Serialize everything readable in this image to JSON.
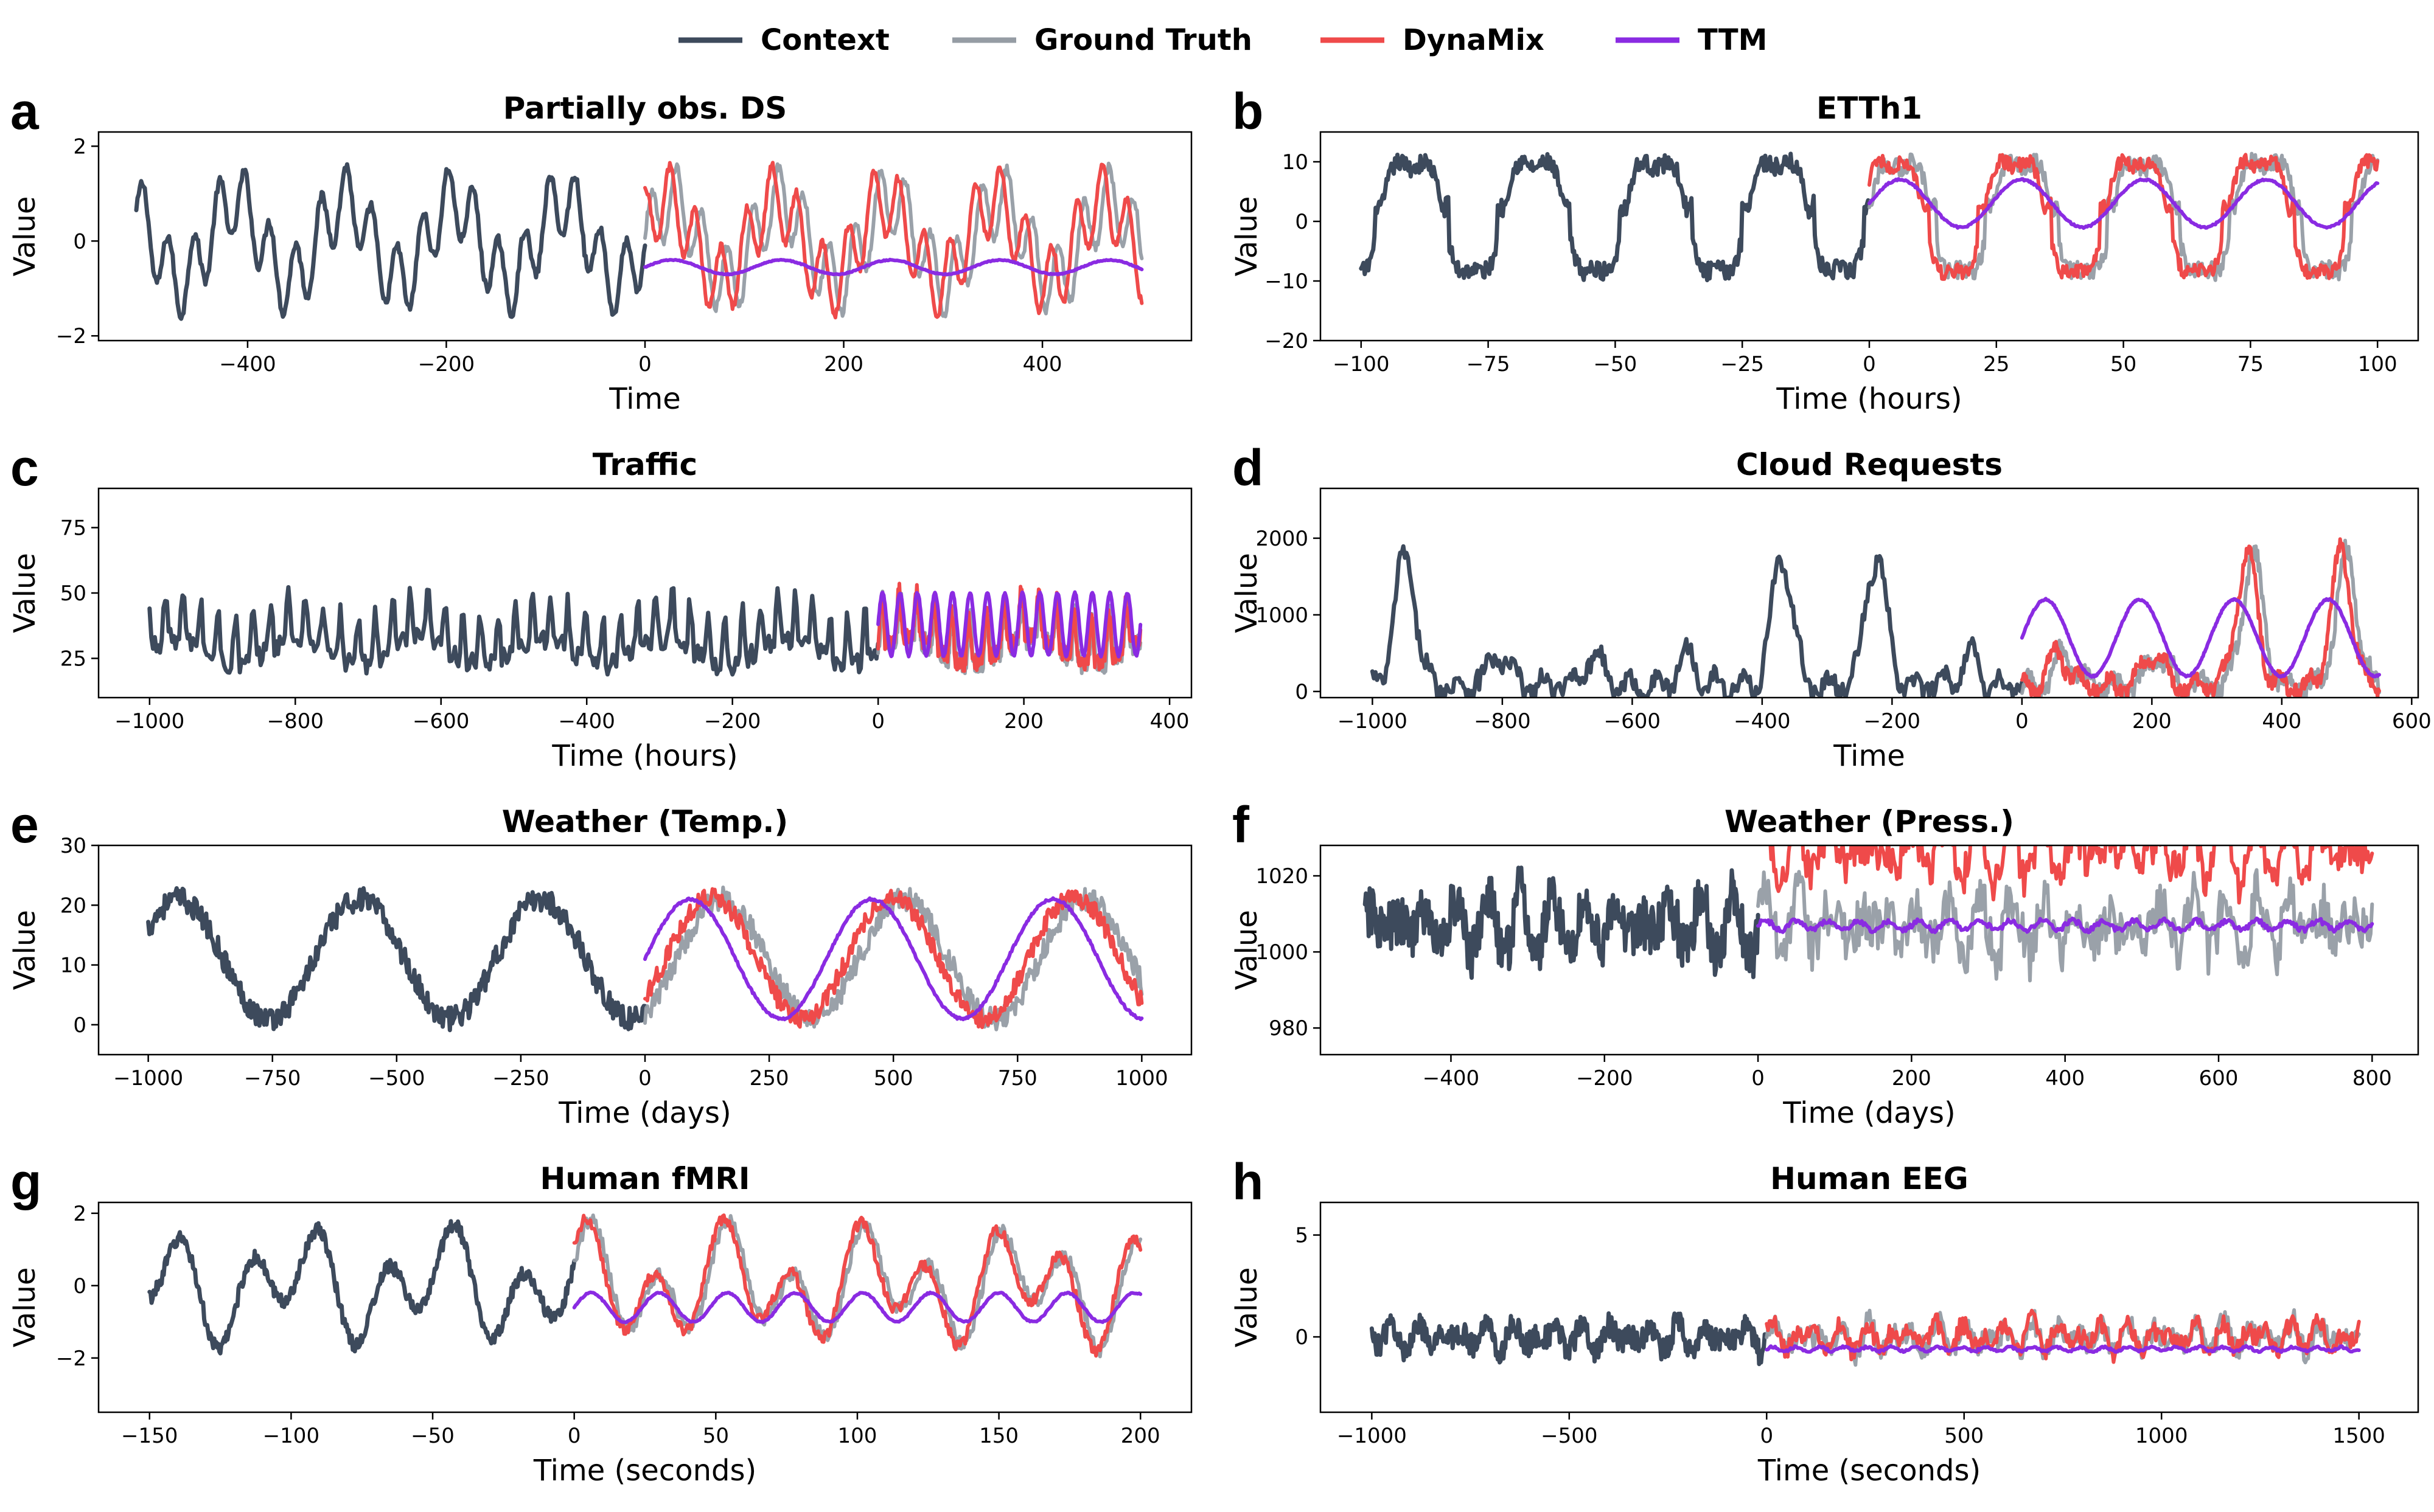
{
  "legend": [
    {
      "name": "Context",
      "color": "#3d4a5c"
    },
    {
      "name": "Ground Truth",
      "color": "#959ca4"
    },
    {
      "name": "DynaMix",
      "color": "#ef4a4a"
    },
    {
      "name": "TTM",
      "color": "#8a2be2"
    }
  ],
  "chart_data": [
    {
      "panel": "a",
      "type": "line",
      "title": "Partially obs. DS",
      "xlabel": "Time",
      "ylabel": "Value",
      "xlim": [
        -550,
        550
      ],
      "ylim": [
        -2.1,
        2.3
      ],
      "xticks": [
        -400,
        -200,
        0,
        200,
        400
      ],
      "yticks": [
        -2,
        0,
        2
      ],
      "context_start": -512,
      "horizon_end": 500,
      "signal": "oscillator",
      "level": 0,
      "amp": 1.4,
      "period": 110,
      "noise": 0.1,
      "ttm_level": -0.55,
      "ttm_amp": 0.15,
      "series": [
        "Context",
        "Ground Truth",
        "DynaMix",
        "TTM"
      ]
    },
    {
      "panel": "b",
      "type": "line",
      "title": "ETTh1",
      "xlabel": "Time (hours)",
      "ylabel": "Value",
      "xlim": [
        -108,
        108
      ],
      "ylim": [
        -20,
        15
      ],
      "xticks": [
        -100,
        -75,
        -50,
        -25,
        0,
        25,
        50,
        75,
        100
      ],
      "yticks": [
        -20,
        -10,
        0,
        10
      ],
      "context_start": -100,
      "horizon_end": 100,
      "signal": "daily",
      "level": 2,
      "amp": 10,
      "period": 24,
      "noise": 1.5,
      "ttm_level": 3,
      "ttm_amp": 4,
      "series": [
        "Context",
        "Ground Truth",
        "DynaMix",
        "TTM"
      ]
    },
    {
      "panel": "c",
      "type": "line",
      "title": "Traffic",
      "xlabel": "Time (hours)",
      "ylabel": "Value",
      "xlim": [
        -1070,
        430
      ],
      "ylim": [
        10,
        90
      ],
      "xticks": [
        -1000,
        -800,
        -600,
        -400,
        -200,
        0,
        200,
        400
      ],
      "yticks": [
        25,
        50,
        75
      ],
      "context_start": -1000,
      "horizon_end": 360,
      "signal": "spiky",
      "level": 32,
      "amp": 18,
      "period": 24,
      "noise": 4,
      "ttm_level": 38,
      "ttm_amp": 12,
      "series": [
        "Context",
        "Ground Truth",
        "DynaMix",
        "TTM"
      ]
    },
    {
      "panel": "d",
      "type": "line",
      "title": "Cloud Requests",
      "xlabel": "Time",
      "ylabel": "Value",
      "xlim": [
        -1080,
        610
      ],
      "ylim": [
        -80,
        2650
      ],
      "xticks": [
        -1000,
        -800,
        -600,
        -400,
        -200,
        0,
        200,
        400,
        600
      ],
      "yticks": [
        0,
        1000,
        2000
      ],
      "context_start": -1000,
      "horizon_end": 550,
      "signal": "bursts",
      "level": 300,
      "amp": 1700,
      "period": 145,
      "noise": 120,
      "ttm_level": 700,
      "ttm_amp": 500,
      "series": [
        "Context",
        "Ground Truth",
        "DynaMix",
        "TTM"
      ]
    },
    {
      "panel": "e",
      "type": "line",
      "title": "Weather (Temp.)",
      "xlabel": "Time (days)",
      "ylabel": "Value",
      "xlim": [
        -1100,
        1100
      ],
      "ylim": [
        -5,
        30
      ],
      "xticks": [
        -1000,
        -750,
        -500,
        -250,
        0,
        250,
        500,
        750,
        1000
      ],
      "yticks": [
        0,
        10,
        20,
        30
      ],
      "context_start": -1000,
      "horizon_end": 1000,
      "signal": "seasonal",
      "level": 11,
      "amp": 10,
      "period": 365,
      "noise": 2,
      "ttm_level": 11,
      "ttm_amp": 10,
      "series": [
        "Context",
        "Ground Truth",
        "DynaMix",
        "TTM"
      ]
    },
    {
      "panel": "f",
      "type": "line",
      "title": "Weather (Press.)",
      "xlabel": "Time (days)",
      "ylabel": "Value",
      "xlim": [
        -570,
        860
      ],
      "ylim": [
        973,
        1028
      ],
      "xticks": [
        -400,
        -200,
        0,
        200,
        400,
        600,
        800
      ],
      "yticks": [
        980,
        1000,
        1020
      ],
      "context_start": -512,
      "horizon_end": 800,
      "signal": "noisy",
      "level": 1007,
      "amp": 8,
      "period": 40,
      "noise": 7,
      "ttm_level": 1007,
      "ttm_amp": 1.2,
      "series": [
        "Context",
        "Ground Truth",
        "DynaMix",
        "TTM"
      ]
    },
    {
      "panel": "g",
      "type": "line",
      "title": "Human fMRI",
      "xlabel": "Time (seconds)",
      "ylabel": "Value",
      "xlim": [
        -168,
        218
      ],
      "ylim": [
        -3.5,
        2.3
      ],
      "xticks": [
        -150,
        -100,
        -50,
        0,
        50,
        100,
        150,
        200
      ],
      "yticks": [
        -2,
        0,
        2
      ],
      "context_start": -150,
      "horizon_end": 200,
      "signal": "smooth",
      "level": 0,
      "amp": 1.5,
      "period": 24,
      "noise": 0.2,
      "ttm_level": -0.6,
      "ttm_amp": 0.4,
      "series": [
        "Context",
        "Ground Truth",
        "DynaMix",
        "TTM"
      ]
    },
    {
      "panel": "h",
      "type": "line",
      "title": "Human EEG",
      "xlabel": "Time (seconds)",
      "ylabel": "Value",
      "xlim": [
        -1130,
        1650
      ],
      "ylim": [
        -3.7,
        6.6
      ],
      "xticks": [
        -1000,
        -500,
        0,
        500,
        1000,
        1500
      ],
      "yticks": [
        0,
        5
      ],
      "context_start": -1000,
      "horizon_end": 1500,
      "signal": "eeg",
      "level": 0,
      "amp": 0.8,
      "period": 60,
      "noise": 0.6,
      "ttm_level": -0.6,
      "ttm_amp": 0.1,
      "series": [
        "Context",
        "Ground Truth",
        "DynaMix",
        "TTM"
      ]
    }
  ]
}
